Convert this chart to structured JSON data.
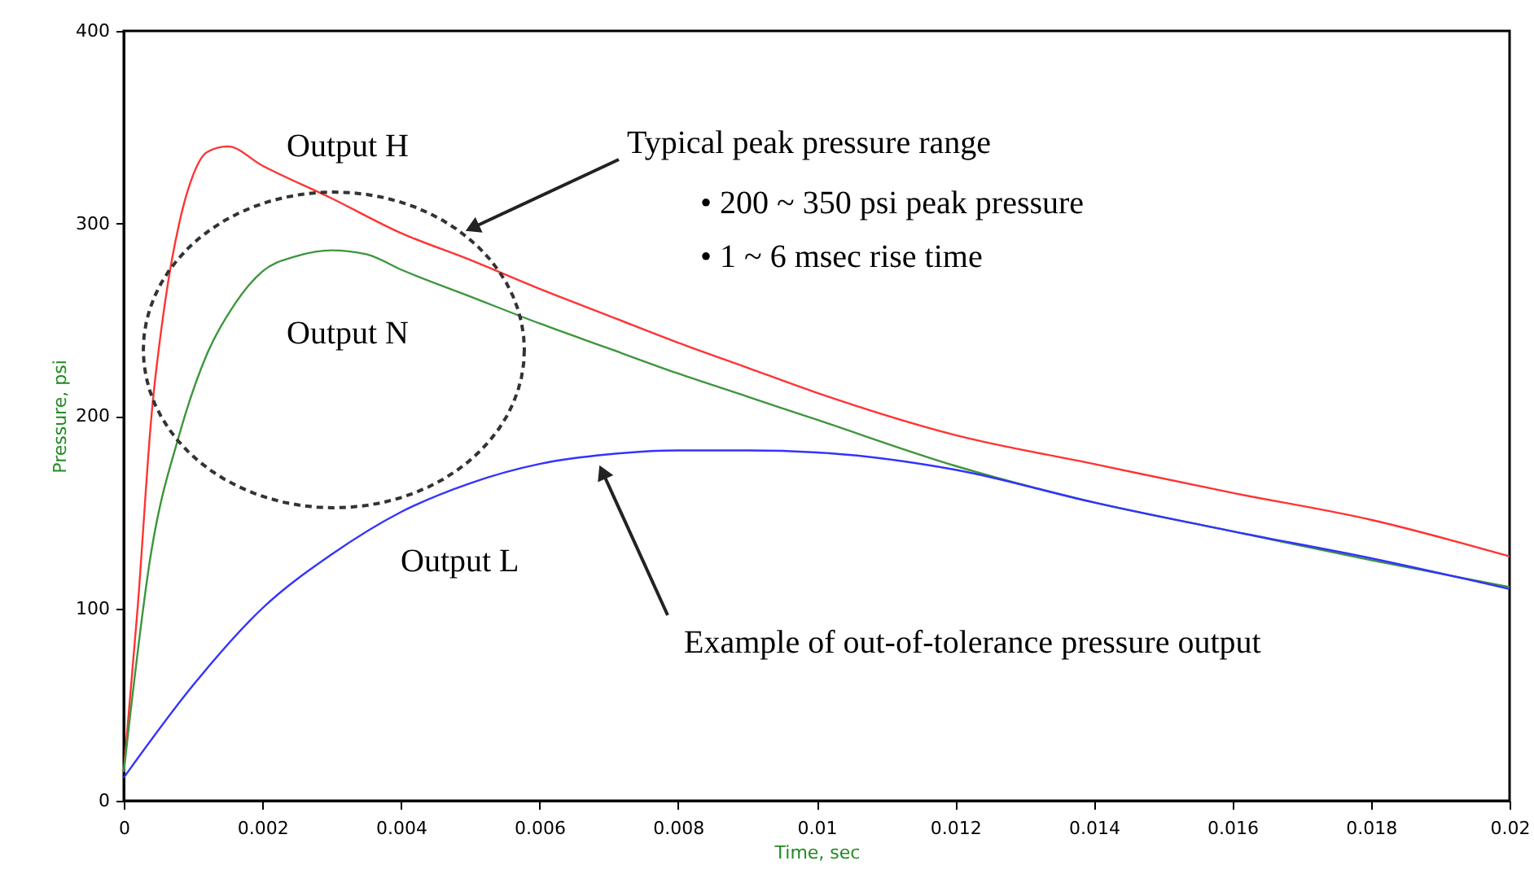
{
  "chart_data": {
    "type": "line",
    "xlabel": "Time, sec",
    "ylabel": "Pressure, psi",
    "xlim": [
      0,
      0.02
    ],
    "ylim": [
      0,
      400
    ],
    "xticks": [
      0,
      0.002,
      0.004,
      0.006,
      0.008,
      0.01,
      0.012,
      0.014,
      0.016,
      0.018,
      0.02
    ],
    "yticks": [
      0,
      100,
      200,
      300,
      400
    ],
    "grid": false,
    "marker": "none",
    "line_style": "solid",
    "series": [
      {
        "color": "#ff3333",
        "x": [
          0,
          0.0002,
          0.0004,
          0.0006,
          0.0008,
          0.001,
          0.0012,
          0.0015,
          0.002,
          0.003,
          0.004,
          0.005,
          0.006,
          0.007,
          0.008,
          0.009,
          0.01,
          0.012,
          0.014,
          0.016,
          0.018,
          0.02
        ],
        "values": [
          15,
          100,
          200,
          260,
          300,
          325,
          337,
          340,
          330,
          313,
          295,
          281,
          266,
          252,
          238,
          225,
          212,
          190,
          175,
          160,
          146,
          127
        ]
      },
      {
        "color": "#3c963c",
        "x": [
          0,
          0.0004,
          0.0008,
          0.0012,
          0.0016,
          0.002,
          0.0025,
          0.003,
          0.0035,
          0.004,
          0.005,
          0.006,
          0.007,
          0.008,
          0.009,
          0.01,
          0.012,
          0.014,
          0.016,
          0.018,
          0.02
        ],
        "values": [
          15,
          130,
          190,
          232,
          258,
          275,
          283,
          286,
          284,
          276,
          262,
          248,
          235,
          222,
          210,
          198,
          174,
          155,
          140,
          125,
          111
        ]
      },
      {
        "color": "#3333ff",
        "x": [
          0,
          0.001,
          0.002,
          0.003,
          0.004,
          0.005,
          0.006,
          0.007,
          0.008,
          0.009,
          0.01,
          0.012,
          0.014,
          0.016,
          0.018,
          0.02
        ],
        "values": [
          12,
          60,
          100,
          128,
          150,
          165,
          175,
          180,
          182,
          182,
          181,
          172,
          155,
          140,
          126,
          110
        ]
      }
    ],
    "annotations": [
      "Output H",
      "Output N",
      "Output L",
      "Typical peak pressure range",
      "•  200 ~ 350 psi peak pressure",
      "•  1 ~ 6 msec rise time",
      "Example of out-of-tolerance pressure output"
    ]
  }
}
